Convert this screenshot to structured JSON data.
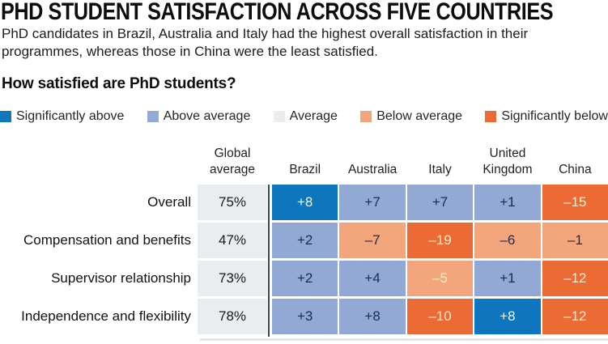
{
  "header": {
    "title": "PHD STUDENT SATISFACTION ACROSS FIVE COUNTRIES",
    "subtitle": "PhD candidates in Brazil, Australia and Italy had the highest overall satisfaction in their programmes, whereas those in China were the least satisfied.",
    "question": "How satisfied are PhD students?"
  },
  "colors": {
    "sig_above": "#0e76bd",
    "above": "#92a9d5",
    "average": "#e9edef",
    "below": "#f3a57c",
    "sig_below": "#ec6a33",
    "cell_text_dark": "#1b2c4f",
    "cell_text_light_cool": "#ecf6ee",
    "cell_text_light_warm": "#f8ecce",
    "separator": "#40464b",
    "shadow": "#e2e6e8"
  },
  "legend": {
    "items": [
      {
        "label": "Significantly above",
        "key": "sig_above"
      },
      {
        "label": "Above average",
        "key": "above"
      },
      {
        "label": "Average",
        "key": "average"
      },
      {
        "label": "Below average",
        "key": "below"
      },
      {
        "label": "Significantly below",
        "key": "sig_below"
      }
    ]
  },
  "table": {
    "global_header": "Global average",
    "country_headers": [
      "Brazil",
      "Australia",
      "Italy",
      "United Kingdom",
      "China"
    ],
    "rows": [
      {
        "label": "Overall",
        "global": "75%",
        "cells": [
          {
            "v": "+8",
            "k": "sig_above",
            "light": true
          },
          {
            "v": "+7",
            "k": "above",
            "light": false
          },
          {
            "v": "+7",
            "k": "above",
            "light": false
          },
          {
            "v": "+1",
            "k": "above",
            "light": false
          },
          {
            "v": "–15",
            "k": "sig_below",
            "light": true
          }
        ]
      },
      {
        "label": "Compensation and benefits",
        "global": "47%",
        "cells": [
          {
            "v": "+2",
            "k": "above",
            "light": false
          },
          {
            "v": "–7",
            "k": "below",
            "light": false
          },
          {
            "v": "–19",
            "k": "sig_below",
            "light": true
          },
          {
            "v": "–6",
            "k": "below",
            "light": false
          },
          {
            "v": "–1",
            "k": "below",
            "light": false
          }
        ]
      },
      {
        "label": "Supervisor relationship",
        "global": "73%",
        "cells": [
          {
            "v": "+2",
            "k": "above",
            "light": false
          },
          {
            "v": "+4",
            "k": "above",
            "light": false
          },
          {
            "v": "–5",
            "k": "below",
            "light": true
          },
          {
            "v": "+1",
            "k": "above",
            "light": false
          },
          {
            "v": "–12",
            "k": "sig_below",
            "light": true
          }
        ]
      },
      {
        "label": "Independence and flexibility",
        "global": "78%",
        "cells": [
          {
            "v": "+3",
            "k": "above",
            "light": false
          },
          {
            "v": "+8",
            "k": "above",
            "light": false
          },
          {
            "v": "–10",
            "k": "sig_below",
            "light": true
          },
          {
            "v": "+8",
            "k": "sig_above",
            "light": true
          },
          {
            "v": "–12",
            "k": "sig_below",
            "light": true
          }
        ]
      }
    ]
  },
  "chart_data": {
    "type": "heatmap",
    "title": "How satisfied are PhD students?",
    "row_categories": [
      "Overall",
      "Compensation and benefits",
      "Supervisor relationship",
      "Independence and flexibility"
    ],
    "column_categories": [
      "Brazil",
      "Australia",
      "Italy",
      "United Kingdom",
      "China"
    ],
    "global_average_percent": [
      75,
      47,
      73,
      78
    ],
    "values_vs_global_average": [
      [
        8,
        7,
        7,
        1,
        -15
      ],
      [
        2,
        -7,
        -19,
        -6,
        -1
      ],
      [
        2,
        4,
        -5,
        1,
        -12
      ],
      [
        3,
        8,
        -10,
        8,
        -12
      ]
    ],
    "legend_categories": [
      "Significantly above",
      "Above average",
      "Average",
      "Below average",
      "Significantly below"
    ],
    "legend_position": "top"
  }
}
